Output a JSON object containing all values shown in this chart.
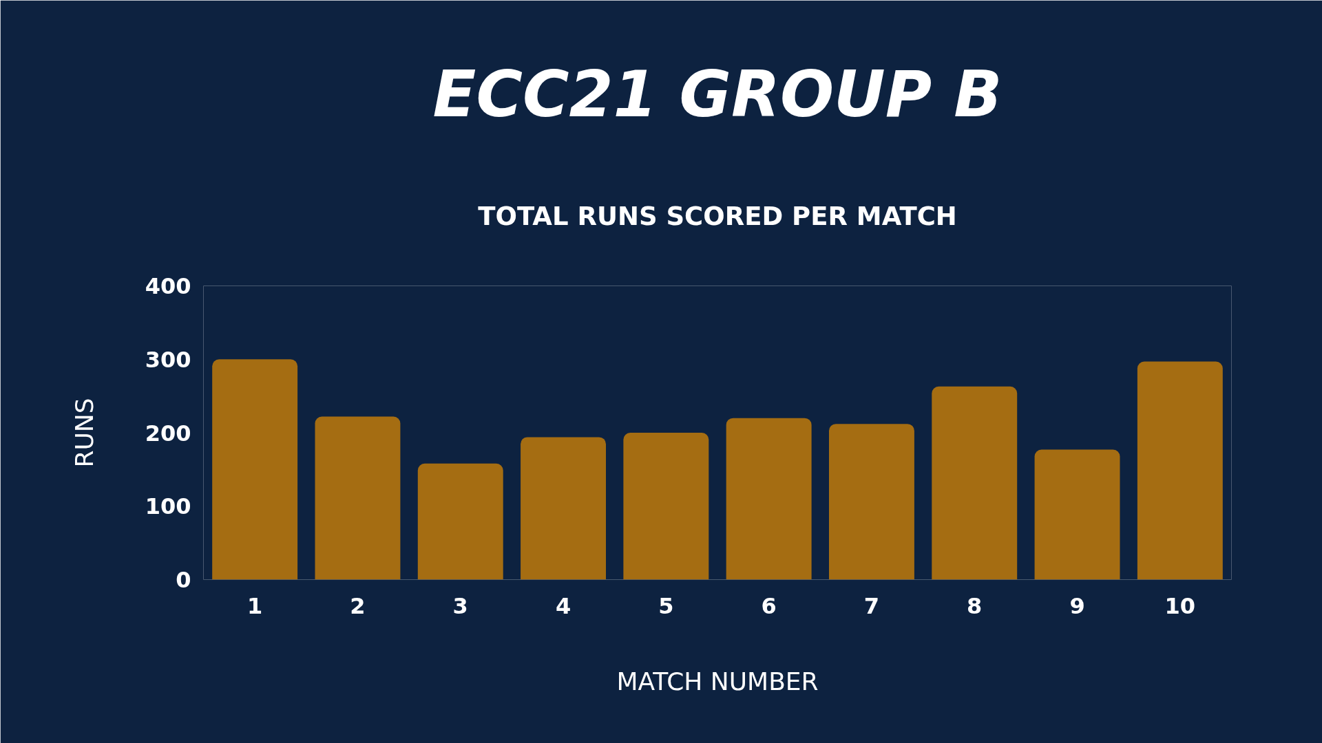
{
  "chart_data": {
    "type": "bar",
    "title": "ECC21 GROUP B",
    "subtitle": "TOTAL RUNS SCORED PER MATCH",
    "xlabel": "MATCH NUMBER",
    "ylabel": "RUNS",
    "categories": [
      "1",
      "2",
      "3",
      "4",
      "5",
      "6",
      "7",
      "8",
      "9",
      "10"
    ],
    "values": [
      300,
      222,
      158,
      194,
      200,
      220,
      212,
      263,
      177,
      297
    ],
    "color": "#a56d12",
    "ylim": [
      0,
      400
    ],
    "yticks": [
      0,
      100,
      200,
      300,
      400
    ],
    "grid": false
  }
}
